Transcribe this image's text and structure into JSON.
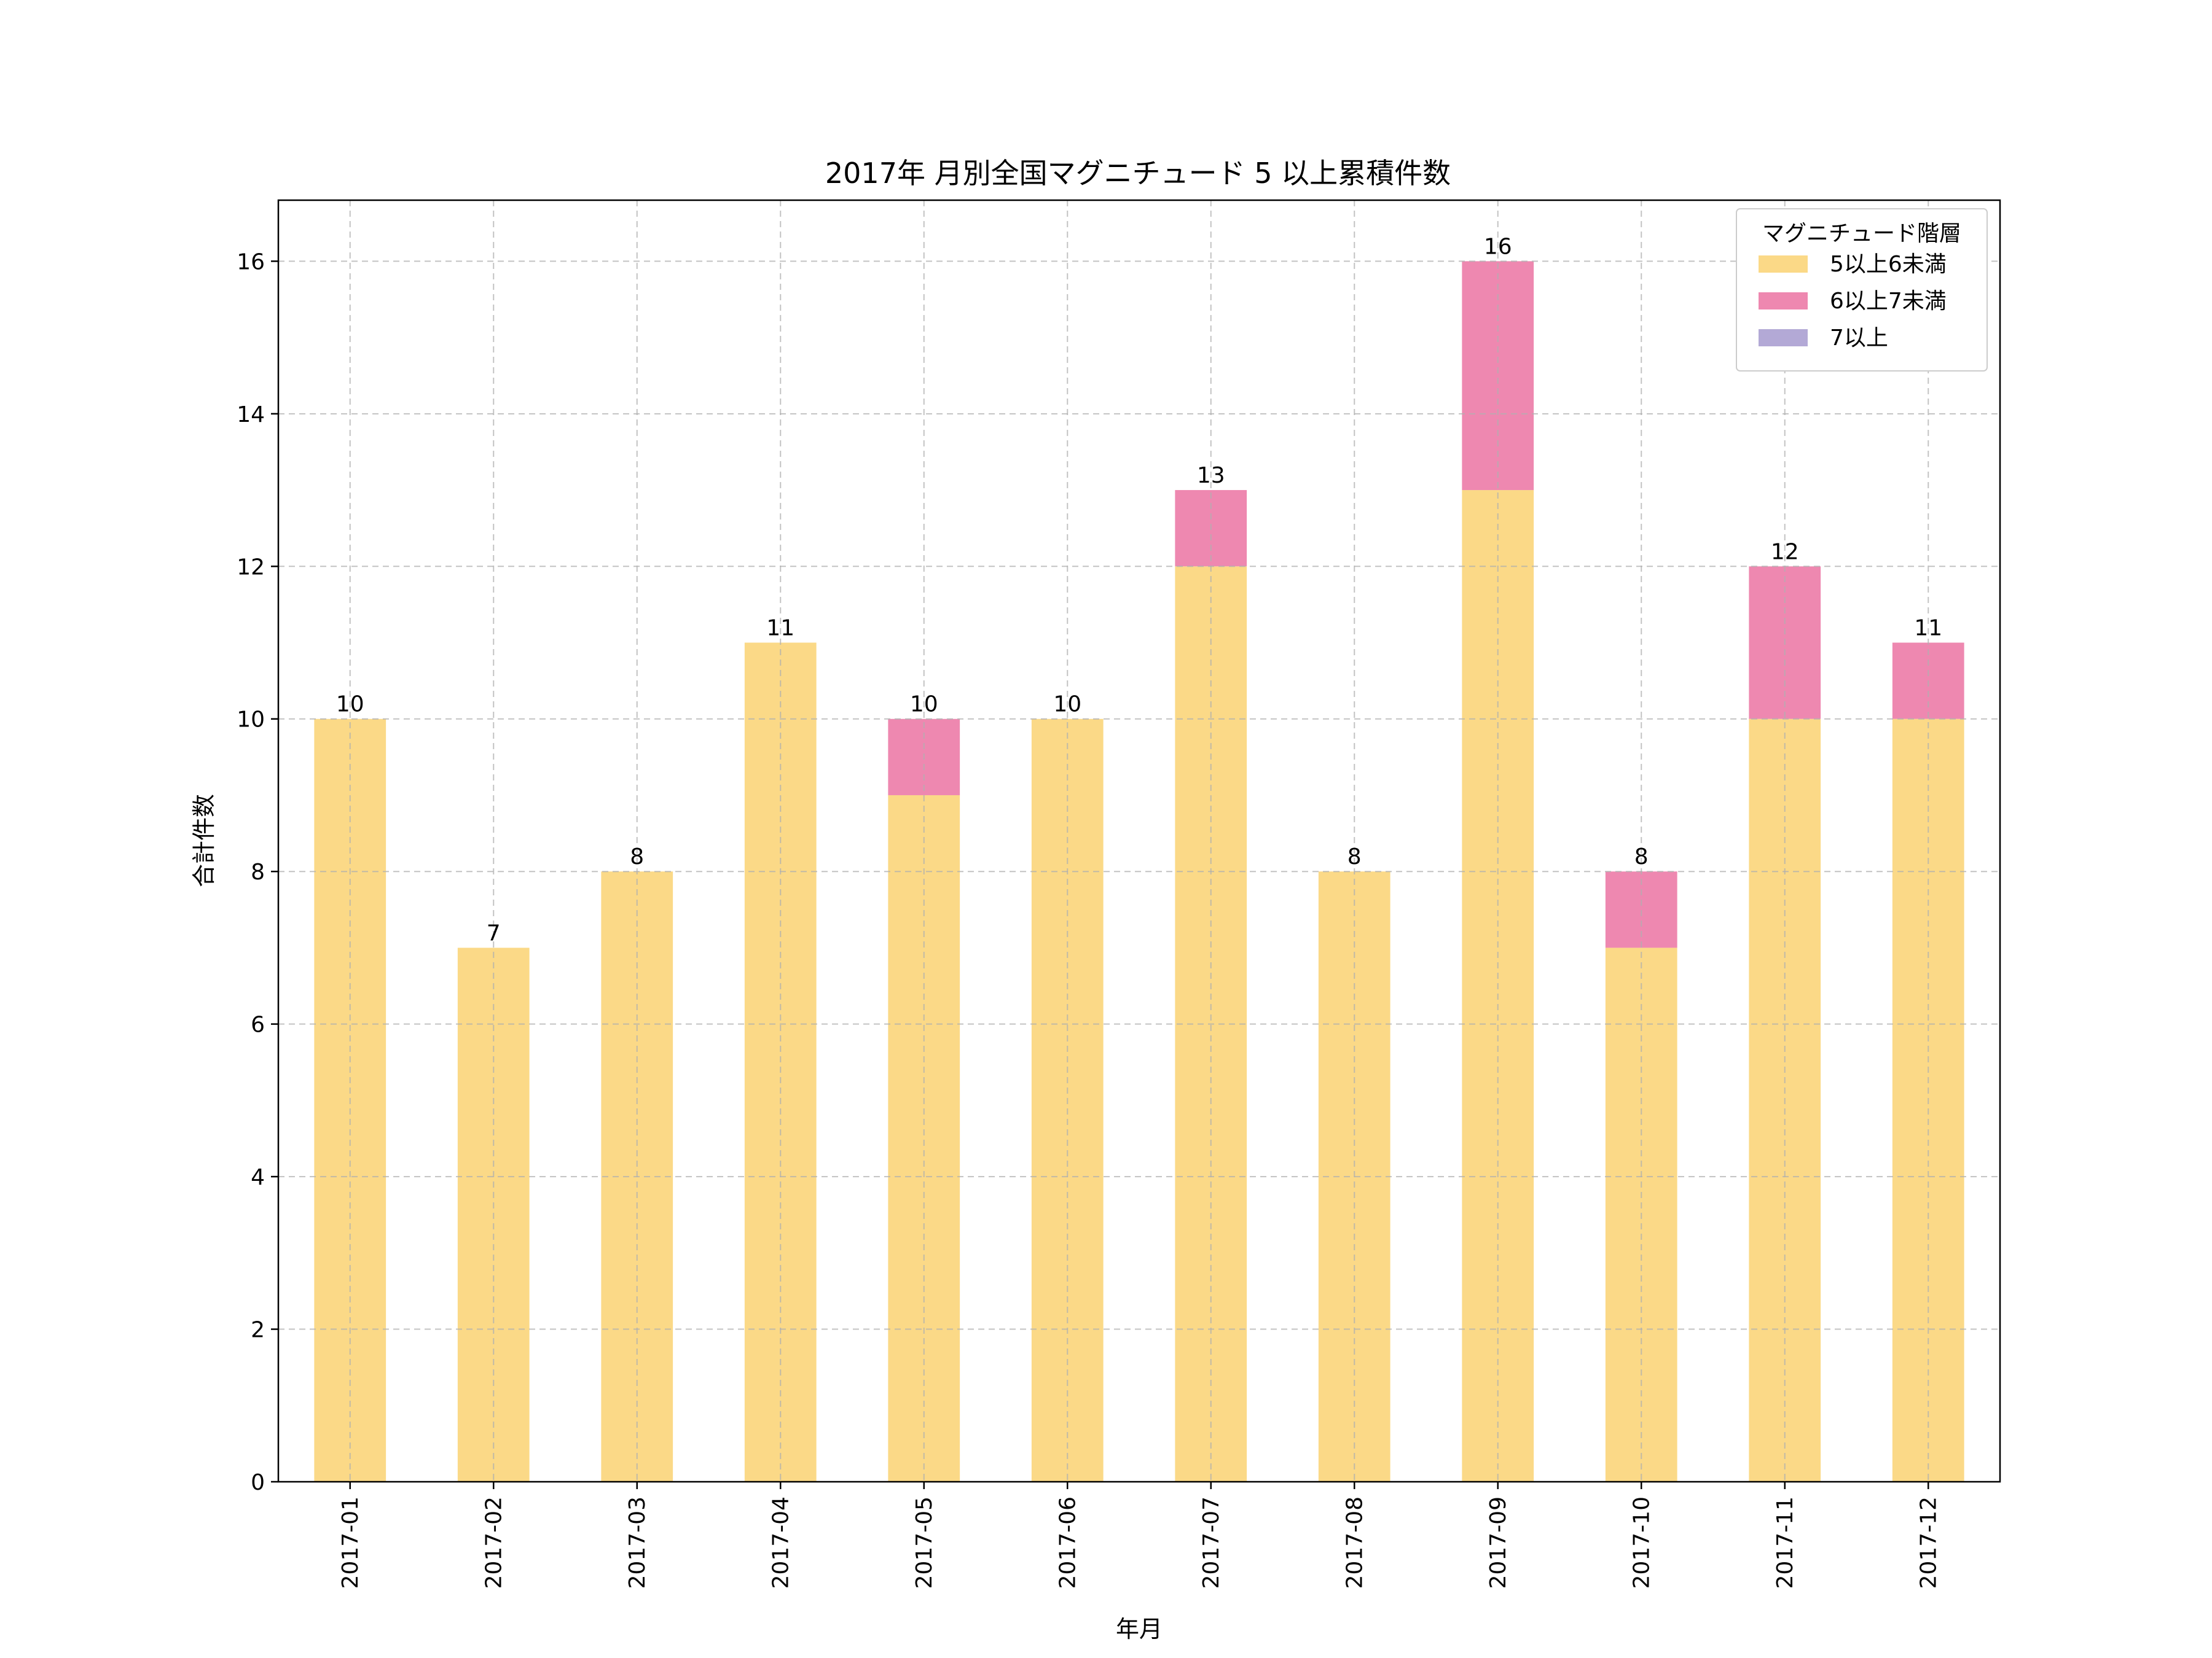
{
  "chart_data": {
    "type": "bar",
    "stacked": true,
    "title": "2017年 月別全国マグニチュード 5 以上累積件数",
    "xlabel": "年月",
    "ylabel": "合計件数",
    "categories": [
      "2017-01",
      "2017-02",
      "2017-03",
      "2017-04",
      "2017-05",
      "2017-06",
      "2017-07",
      "2017-08",
      "2017-09",
      "2017-10",
      "2017-11",
      "2017-12"
    ],
    "series": [
      {
        "name": "5以上6未満",
        "color": "#fbd987",
        "values": [
          10,
          7,
          8,
          11,
          9,
          10,
          12,
          8,
          13,
          7,
          10,
          10
        ]
      },
      {
        "name": "6以上7未満",
        "color": "#ee88b0",
        "values": [
          0,
          0,
          0,
          0,
          1,
          0,
          1,
          0,
          3,
          1,
          2,
          1
        ]
      },
      {
        "name": "7以上",
        "color": "#b3a9d6",
        "values": [
          0,
          0,
          0,
          0,
          0,
          0,
          0,
          0,
          0,
          0,
          0,
          0
        ]
      }
    ],
    "totals": [
      10,
      7,
      8,
      11,
      10,
      10,
      13,
      8,
      16,
      8,
      12,
      11
    ],
    "ylim": [
      0,
      16.8
    ],
    "yticks": [
      0,
      2,
      4,
      6,
      8,
      10,
      12,
      14,
      16
    ],
    "grid": true,
    "legend_title": "マグニチュード階層",
    "legend_position": "top-right"
  }
}
